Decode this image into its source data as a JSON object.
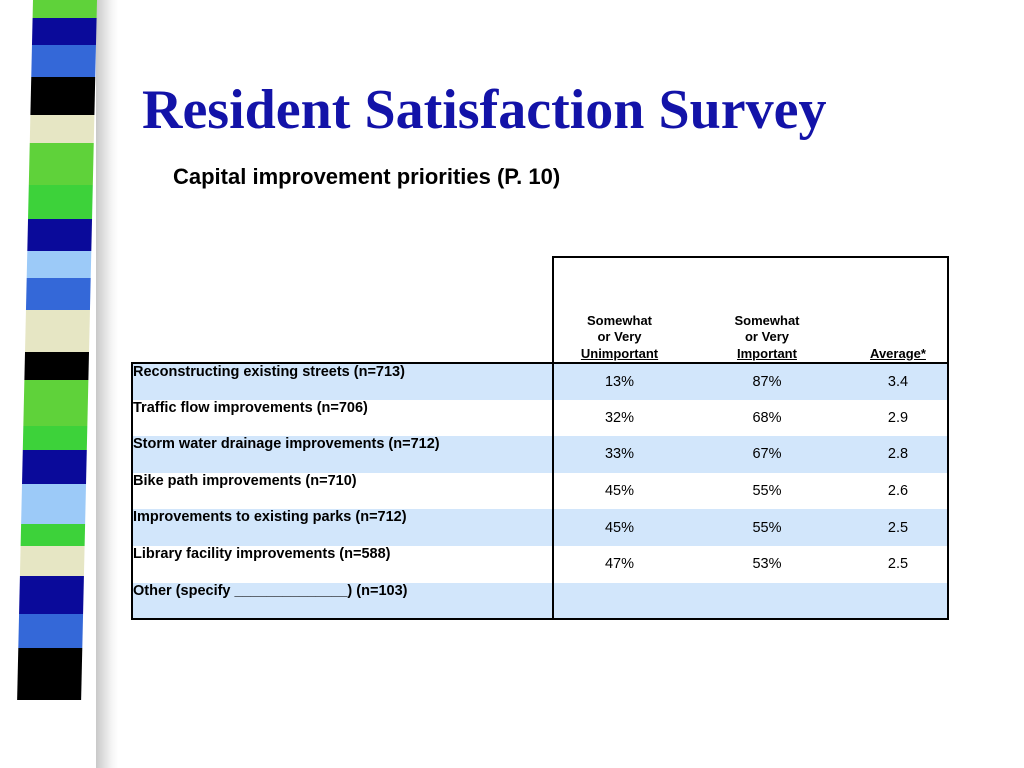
{
  "slide": {
    "title": "Resident Satisfaction Survey",
    "subtitle": "Capital improvement priorities (P. 10)"
  },
  "table": {
    "columns": [
      {
        "line1": "Somewhat",
        "line2": "or Very",
        "line3": "Unimportant"
      },
      {
        "line1": "Somewhat",
        "line2": "or Very",
        "line3": "Important"
      },
      {
        "line1": "",
        "line2": "",
        "line3": "Average*"
      }
    ],
    "rows": [
      {
        "label": "Reconstructing existing streets (n=713)",
        "unimportant": "13%",
        "important": "87%",
        "average": "3.4"
      },
      {
        "label": "Traffic flow improvements (n=706)",
        "unimportant": "32%",
        "important": "68%",
        "average": "2.9"
      },
      {
        "label": "Storm water drainage improvements (n=712)",
        "unimportant": "33%",
        "important": "67%",
        "average": "2.8"
      },
      {
        "label": "Bike path improvements (n=710)",
        "unimportant": "45%",
        "important": "55%",
        "average": "2.6"
      },
      {
        "label": "Improvements to existing parks (n=712)",
        "unimportant": "45%",
        "important": "55%",
        "average": "2.5"
      },
      {
        "label": "Library facility improvements (n=588)",
        "unimportant": "47%",
        "important": "53%",
        "average": "2.5"
      },
      {
        "label": "Other (specify ______________) (n=103)",
        "unimportant": "",
        "important": "",
        "average": ""
      }
    ]
  },
  "colors": {
    "title": "#1313a8",
    "row_shade": "#d2e6fb",
    "stripe": [
      "#5fd23a",
      "#0a0a9a",
      "#3468d8",
      "#000000",
      "#e6e6c4",
      "#5fd23a",
      "#3dd23a",
      "#0a0a9a",
      "#9ccaf8",
      "#3468d8",
      "#e6e6c4",
      "#000000",
      "#5fd23a",
      "#3dd23a",
      "#0a0a9a",
      "#9ccaf8",
      "#3dd23a",
      "#e6e6c4",
      "#0a0a9a",
      "#3468d8",
      "#000000"
    ]
  }
}
